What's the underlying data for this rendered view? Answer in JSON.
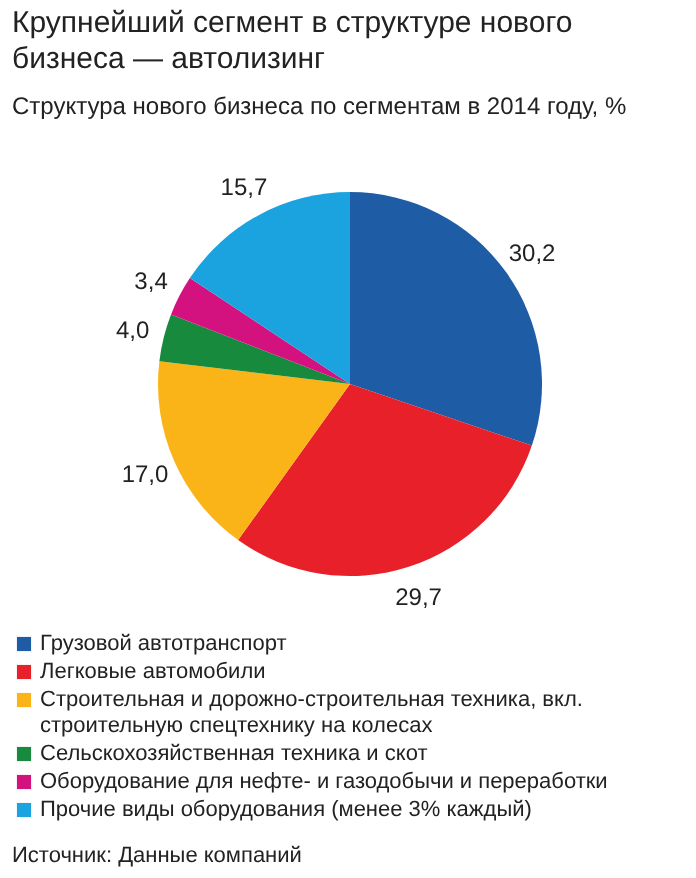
{
  "chart_data": {
    "type": "pie",
    "title": "Крупнейший сегмент в структуре нового бизнеса — автолизинг",
    "subtitle": "Структура нового бизнеса по сегментам в 2014 году, %",
    "categories": [
      "Грузовой автотранспорт",
      "Легковые автомобили",
      "Строительная и дорожно-строительная техника, вкл. строительную спецтехнику на колесах",
      "Сельскохозяйственная техника и скот",
      "Оборудование для нефте- и газодобычи и переработки",
      "Прочие виды оборудования (менее 3% каждый)"
    ],
    "values": [
      30.2,
      29.7,
      17.0,
      4.0,
      3.4,
      15.7
    ],
    "colors": [
      "#1f5ca6",
      "#e8202a",
      "#fbb417",
      "#188a3e",
      "#d4127f",
      "#1ba3df"
    ],
    "value_labels": [
      "30,2",
      "29,7",
      "17,0",
      "4,0",
      "3,4",
      "15,7"
    ],
    "legend": "bottom",
    "annotations": [
      "Источник: Данные компаний"
    ]
  }
}
